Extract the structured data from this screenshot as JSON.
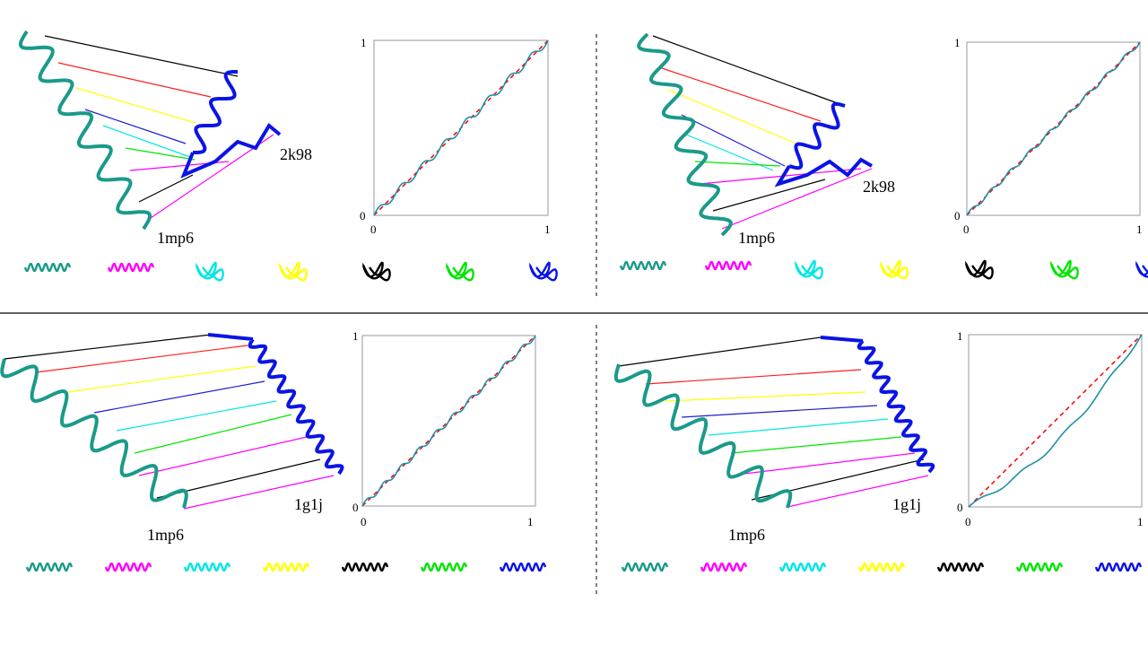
{
  "colors": {
    "teal": "#1a9a8a",
    "blue": "#0a14e6",
    "red": "#ff1e1e",
    "yellow": "#ffff00",
    "dark_blue": "#1c1cd0",
    "cyan": "#00e6e6",
    "green": "#00e600",
    "magenta": "#ff00ff",
    "black": "#000000",
    "diagonal": "#ff0000",
    "curve": "#1f8fa8"
  },
  "panels": [
    {
      "protein_a": "1mp6",
      "protein_b": "2k98",
      "plot": {
        "x_ticks": [
          "0",
          "1"
        ],
        "y_ticks": [
          "0",
          "1"
        ]
      },
      "fragment_icons": [
        "teal-helix",
        "magenta-helix",
        "cyan-coil",
        "yellow-coil",
        "black-coil",
        "green-coil",
        "blue-coil"
      ]
    },
    {
      "protein_a": "1mp6",
      "protein_b": "2k98",
      "plot": {
        "x_ticks": [
          "0",
          "1"
        ],
        "y_ticks": [
          "0",
          "1"
        ]
      },
      "fragment_icons": [
        "teal-helix",
        "magenta-helix",
        "cyan-coil",
        "yellow-coil",
        "black-coil",
        "green-coil",
        "blue-coil"
      ]
    },
    {
      "protein_a": "1mp6",
      "protein_b": "1g1j",
      "plot": {
        "x_ticks": [
          "0",
          "1"
        ],
        "y_ticks": [
          "0",
          "1"
        ]
      },
      "fragment_icons": [
        "teal-helix",
        "magenta-helix",
        "cyan-helix",
        "yellow-helix",
        "black-helix",
        "green-helix",
        "blue-helix"
      ]
    },
    {
      "protein_a": "1mp6",
      "protein_b": "1g1j",
      "plot": {
        "x_ticks": [
          "0",
          "1"
        ],
        "y_ticks": [
          "0",
          "1"
        ]
      },
      "fragment_icons": [
        "teal-helix",
        "magenta-helix",
        "cyan-helix",
        "yellow-helix",
        "black-helix",
        "green-helix",
        "blue-helix"
      ]
    }
  ]
}
